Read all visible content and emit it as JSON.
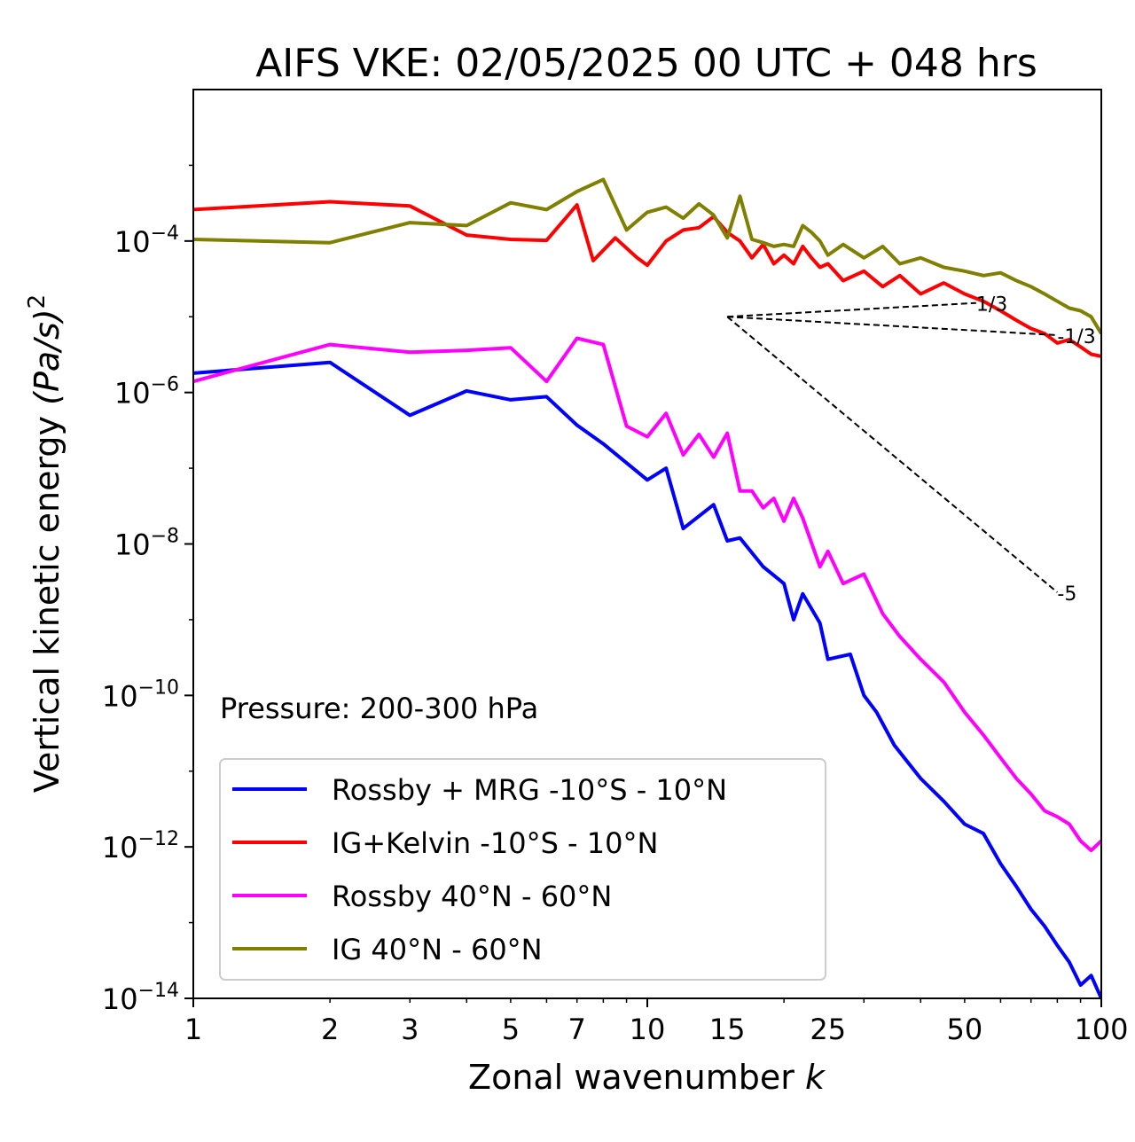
{
  "chart_data": {
    "type": "line",
    "title": "AIFS VKE: 02/05/2025 00 UTC + 048 hrs",
    "xlabel": "Zonal wavenumber",
    "xlabel_var": "k",
    "ylabel": "Vertical kinetic energy",
    "ylabel_unit": "(Pa/s)",
    "ylabel_exp": "2",
    "xscale": "log",
    "yscale": "log",
    "xlim": [
      1,
      100
    ],
    "ylim": [
      1e-14,
      0.01
    ],
    "xticks": [
      1,
      2,
      3,
      5,
      7,
      10,
      15,
      25,
      50,
      100
    ],
    "xtick_labels": [
      "1",
      "2",
      "3",
      "5",
      "7",
      "10",
      "15",
      "25",
      "50",
      "100"
    ],
    "yticks": [
      {
        "value": 0.0001,
        "base": "10",
        "exp": "−4"
      },
      {
        "value": 1e-06,
        "base": "10",
        "exp": "−6"
      },
      {
        "value": 1e-08,
        "base": "10",
        "exp": "−8"
      },
      {
        "value": 1e-10,
        "base": "10",
        "exp": "−10"
      },
      {
        "value": 1e-12,
        "base": "10",
        "exp": "−12"
      },
      {
        "value": 1e-14,
        "base": "10",
        "exp": "−14"
      }
    ],
    "annotation": "Pressure: 200-300 hPa",
    "legend_position": "lower-left",
    "grid": false,
    "series": [
      {
        "name": "Rossby + MRG -10°S - 10°N",
        "color": "#0000ff",
        "x": [
          1,
          2,
          3,
          4,
          5,
          6,
          7,
          8,
          10,
          11,
          12,
          14,
          15,
          16,
          18,
          20,
          21,
          22,
          24,
          25,
          28,
          30,
          32,
          35,
          40,
          45,
          50,
          55,
          60,
          65,
          70,
          75,
          80,
          85,
          90,
          95,
          100
        ],
        "y": [
          1.8e-06,
          2.5e-06,
          5e-07,
          1.05e-06,
          8e-07,
          8.8e-07,
          3.7e-07,
          2.1e-07,
          7e-08,
          1e-07,
          1.6e-08,
          3.3e-08,
          1.1e-08,
          1.2e-08,
          5e-09,
          3e-09,
          1e-09,
          2.2e-09,
          9e-10,
          3e-10,
          3.5e-10,
          1e-10,
          6e-11,
          2.2e-11,
          8e-12,
          4e-12,
          2e-12,
          1.5e-12,
          6e-13,
          3e-13,
          1.5e-13,
          9e-14,
          5e-14,
          3e-14,
          1.5e-14,
          2e-14,
          1e-14
        ]
      },
      {
        "name": "IG+Kelvin -10°S - 10°N",
        "color": "#ff0000",
        "x": [
          1,
          2,
          3,
          4,
          5,
          6,
          7,
          7.6,
          8.5,
          9.5,
          10,
          11,
          12,
          13,
          14,
          15,
          16,
          17,
          18,
          19,
          20,
          21,
          22,
          23,
          24,
          25,
          27,
          30,
          33,
          36,
          40,
          45,
          50,
          55,
          60,
          65,
          70,
          75,
          80,
          85,
          90,
          95,
          100
        ],
        "y": [
          0.00026,
          0.00033,
          0.00029,
          0.00012,
          0.000105,
          0.000102,
          0.0003,
          5.5e-05,
          0.00011,
          6e-05,
          4.8e-05,
          0.0001,
          0.00014,
          0.00015,
          0.00021,
          0.00013,
          0.0001,
          6e-05,
          9e-05,
          5e-05,
          6.5e-05,
          5e-05,
          8.5e-05,
          6e-05,
          4.5e-05,
          5e-05,
          3e-05,
          4e-05,
          2.5e-05,
          3.5e-05,
          2e-05,
          2.8e-05,
          2e-05,
          1.6e-05,
          1.2e-05,
          9e-06,
          7e-06,
          6e-06,
          4.5e-06,
          5e-06,
          4e-06,
          3.2e-06,
          3e-06
        ]
      },
      {
        "name": "Rossby 40°N - 60°N",
        "color": "#ff00ff",
        "x": [
          1,
          2,
          3,
          4,
          5,
          6,
          7,
          8,
          9,
          10,
          11,
          12,
          13,
          14,
          15,
          16,
          17,
          18,
          19,
          20,
          21,
          22,
          24,
          25,
          27,
          30,
          33,
          36,
          40,
          45,
          50,
          55,
          60,
          65,
          70,
          75,
          80,
          85,
          90,
          95,
          100
        ],
        "y": [
          1.4e-06,
          4.3e-06,
          3.4e-06,
          3.6e-06,
          3.9e-06,
          1.4e-06,
          5.2e-06,
          4.3e-06,
          3.6e-07,
          2.6e-07,
          5.3e-07,
          1.5e-07,
          2.8e-07,
          1.4e-07,
          2.9e-07,
          5e-08,
          5e-08,
          3e-08,
          4e-08,
          2e-08,
          4e-08,
          2.2e-08,
          5e-09,
          8e-09,
          3e-09,
          4e-09,
          1.2e-09,
          6e-10,
          3e-10,
          1.5e-10,
          6e-11,
          3e-11,
          1.5e-11,
          8e-12,
          5e-12,
          3e-12,
          2.5e-12,
          2e-12,
          1.2e-12,
          9e-13,
          1.2e-12
        ]
      },
      {
        "name": "IG 40°N - 60°N",
        "color": "#808000",
        "x": [
          1,
          2,
          3,
          4,
          5,
          6,
          7,
          8,
          9,
          10,
          11,
          12,
          13,
          14,
          15,
          16,
          17,
          18,
          19,
          20,
          21,
          22,
          23,
          24,
          25,
          27,
          30,
          33,
          36,
          40,
          45,
          50,
          55,
          60,
          65,
          70,
          75,
          80,
          85,
          90,
          95,
          100
        ],
        "y": [
          0.000105,
          9.5e-05,
          0.000175,
          0.00016,
          0.00032,
          0.00026,
          0.00045,
          0.00065,
          0.00014,
          0.00024,
          0.00028,
          0.0002,
          0.00031,
          0.00022,
          0.00011,
          0.00039,
          0.000105,
          9.5e-05,
          8.5e-05,
          9e-05,
          8.5e-05,
          0.00016,
          0.00013,
          0.0001,
          6.5e-05,
          9e-05,
          6e-05,
          8.5e-05,
          5e-05,
          6e-05,
          4.5e-05,
          4e-05,
          3.5e-05,
          3.8e-05,
          3e-05,
          2.5e-05,
          2e-05,
          1.6e-05,
          1.3e-05,
          1.2e-05,
          1e-05,
          6e-06
        ]
      }
    ],
    "reference_lines": [
      {
        "label": "1/3",
        "x": [
          15,
          53
        ],
        "y": [
          1e-05,
          1.52e-05
        ]
      },
      {
        "label": "-1/3",
        "x": [
          15,
          80
        ],
        "y": [
          1e-05,
          5.72e-06
        ]
      },
      {
        "label": "-5",
        "x": [
          15,
          80
        ],
        "y": [
          1e-05,
          2.3e-09
        ]
      }
    ]
  }
}
